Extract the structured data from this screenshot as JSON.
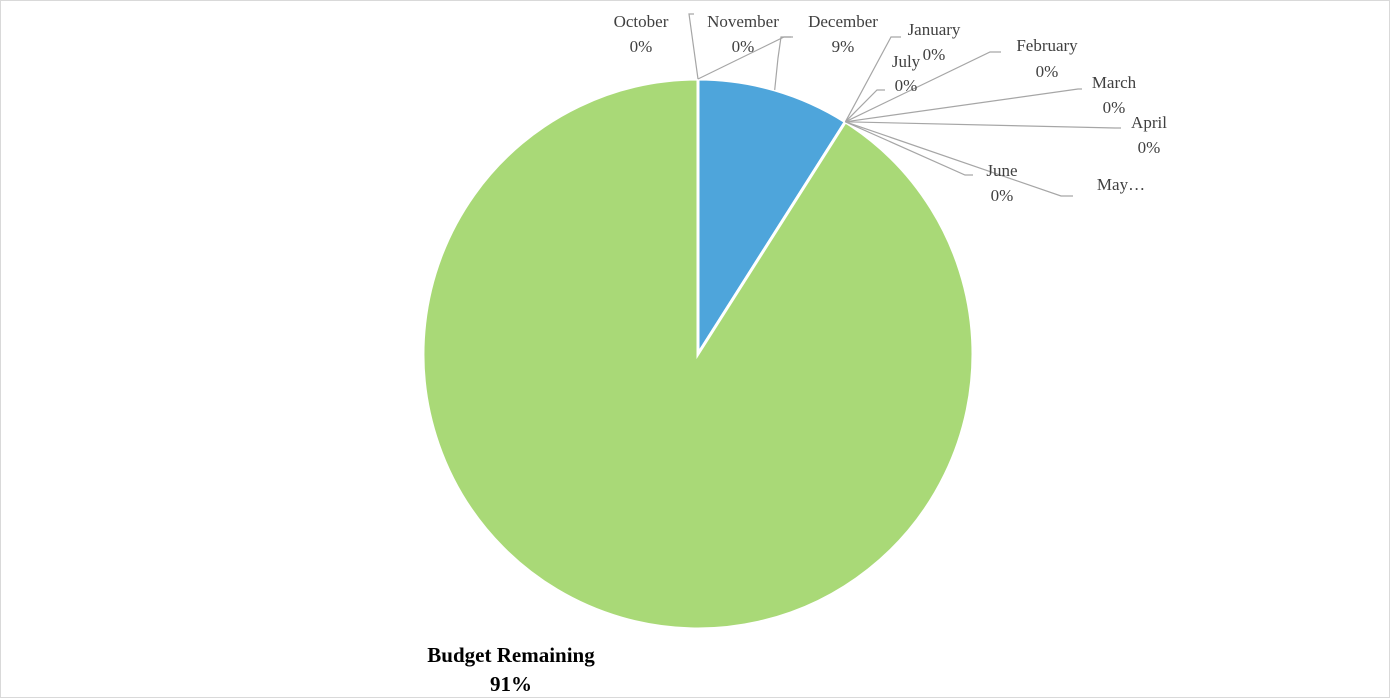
{
  "chart_data": {
    "type": "pie",
    "title": "",
    "start_angle_deg": 0,
    "direction": "clockwise",
    "slices": [
      {
        "label": "October",
        "value_label": "0%",
        "value": 0,
        "color": "#4ea5db"
      },
      {
        "label": "November",
        "value_label": "0%",
        "value": 0,
        "color": "#4ea5db"
      },
      {
        "label": "December",
        "value_label": "9%",
        "value": 9,
        "color": "#4ea5db"
      },
      {
        "label": "January",
        "value_label": "0%",
        "value": 0,
        "color": "#4ea5db"
      },
      {
        "label": "February",
        "value_label": "0%",
        "value": 0,
        "color": "#4ea5db"
      },
      {
        "label": "March",
        "value_label": "0%",
        "value": 0,
        "color": "#4ea5db"
      },
      {
        "label": "April",
        "value_label": "0%",
        "value": 0,
        "color": "#4ea5db"
      },
      {
        "label": "May…",
        "value_label": "",
        "value": 0,
        "color": "#4ea5db"
      },
      {
        "label": "June",
        "value_label": "0%",
        "value": 0,
        "color": "#4ea5db"
      },
      {
        "label": "July",
        "value_label": "0%",
        "value": 0,
        "color": "#4ea5db"
      },
      {
        "label": "Budget Remaining",
        "value_label": "91%",
        "value": 91,
        "color": "#a9d977",
        "bold": true
      }
    ],
    "legend": "none"
  }
}
